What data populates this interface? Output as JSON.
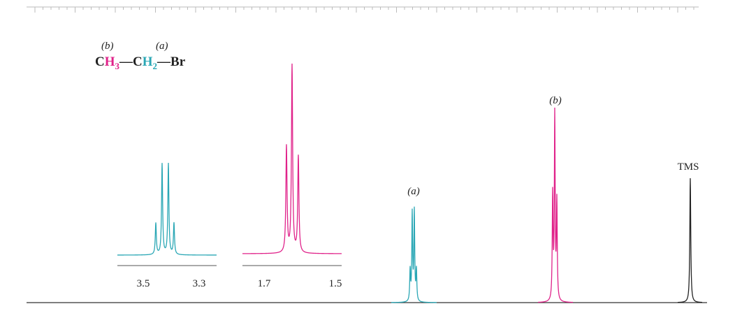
{
  "molecule": {
    "label_b": "(b)",
    "label_a": "(a)",
    "c1": "C",
    "h3": "H",
    "sub3": "3",
    "bond1": "—C",
    "h2": "H",
    "sub2": "2",
    "bond2": "—Br"
  },
  "peaks": {
    "a": "(a)",
    "b": "(b)",
    "tms": "TMS"
  },
  "inset_a": {
    "ticks": [
      "3.5",
      "3.3"
    ]
  },
  "inset_b": {
    "ticks": [
      "1.7",
      "1.5"
    ]
  }
}
